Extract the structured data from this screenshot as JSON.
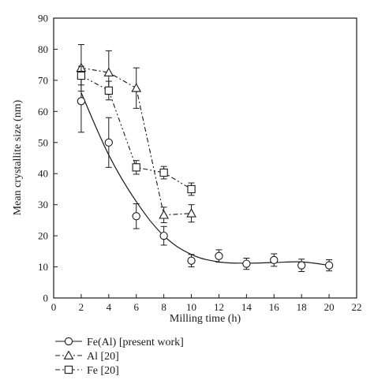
{
  "chart_data": {
    "type": "line",
    "xlabel": "Milling time (h)",
    "ylabel": "Mean crystallite size (nm)",
    "xlim": [
      0,
      22
    ],
    "ylim": [
      0,
      90
    ],
    "xticks": [
      0,
      2,
      4,
      6,
      8,
      10,
      12,
      14,
      16,
      18,
      20,
      22
    ],
    "yticks": [
      0,
      10,
      20,
      30,
      40,
      50,
      60,
      70,
      80,
      90
    ],
    "grid": false,
    "legend_position": "below",
    "series": [
      {
        "name": "Fe(Al) [present work]",
        "marker": "circle",
        "line_style": "solid",
        "fitted_curve": true,
        "x": [
          2,
          4,
          6,
          8,
          10,
          12,
          14,
          16,
          18,
          20
        ],
        "y": [
          63.3,
          50.0,
          26.3,
          20.0,
          12.0,
          13.5,
          11.0,
          12.2,
          10.5,
          10.5
        ],
        "error": [
          10.0,
          8.0,
          4.0,
          3.0,
          2.0,
          2.0,
          1.8,
          2.0,
          2.0,
          1.8
        ]
      },
      {
        "name": "Al [20]",
        "marker": "triangle",
        "line_style": "dash-dot",
        "x": [
          2,
          4,
          6,
          8,
          10
        ],
        "y": [
          74.0,
          72.5,
          67.5,
          26.7,
          27.2
        ],
        "error": [
          7.5,
          7.0,
          6.5,
          2.5,
          2.8
        ]
      },
      {
        "name": "Fe [20]",
        "marker": "square",
        "line_style": "dash-dot-dot",
        "x": [
          2,
          4,
          6,
          8,
          10
        ],
        "y": [
          71.5,
          66.7,
          42.0,
          40.3,
          35.0
        ],
        "error": [
          3.0,
          3.0,
          2.2,
          2.0,
          2.0
        ]
      }
    ]
  }
}
